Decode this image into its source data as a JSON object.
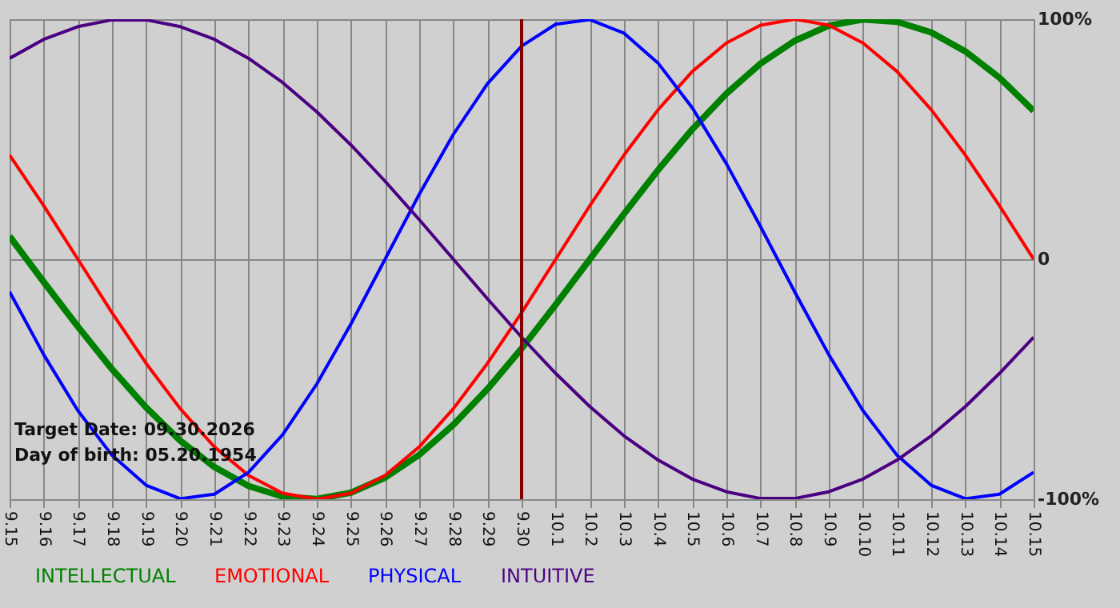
{
  "chart_data": {
    "type": "line",
    "categories": [
      "9.15",
      "9.16",
      "9.17",
      "9.18",
      "9.19",
      "9.20",
      "9.21",
      "9.22",
      "9.23",
      "9.24",
      "9.25",
      "9.26",
      "9.27",
      "9.28",
      "9.29",
      "9.30",
      "10.1",
      "10.2",
      "10.3",
      "10.4",
      "10.5",
      "10.6",
      "10.7",
      "10.8",
      "10.9",
      "10.10",
      "10.11",
      "10.12",
      "10.13",
      "10.14",
      "10.15"
    ],
    "series": [
      {
        "name": "INTELLECTUAL",
        "color": "#008000",
        "values": [
          9.5,
          -9.5,
          -28.1,
          -45.8,
          -61.8,
          -75.6,
          -86.6,
          -94.5,
          -98.9,
          -99.9,
          -97.3,
          -91.0,
          -81.5,
          -69.0,
          -54.1,
          -37.2,
          -18.9,
          0,
          18.9,
          37.2,
          54.1,
          69.0,
          81.5,
          91.0,
          97.3,
          99.9,
          98.9,
          94.5,
          86.6,
          75.6,
          61.8
        ]
      },
      {
        "name": "EMOTIONAL",
        "color": "#ff0000",
        "values": [
          43.4,
          22.3,
          0,
          -22.3,
          -43.4,
          -62.3,
          -78.2,
          -90.1,
          -97.5,
          -100,
          -97.5,
          -90.1,
          -78.2,
          -62.3,
          -43.4,
          -22.3,
          0,
          22.3,
          43.4,
          62.3,
          78.2,
          90.1,
          97.5,
          100,
          97.5,
          90.1,
          78.2,
          62.3,
          43.4,
          22.3,
          0
        ]
      },
      {
        "name": "PHYSICAL",
        "color": "#0000ff",
        "values": [
          -13.6,
          -39.8,
          -63.1,
          -81.7,
          -94.2,
          -99.8,
          -97.9,
          -88.8,
          -73.1,
          -52.0,
          -27.0,
          0,
          27.0,
          52.0,
          73.1,
          88.8,
          97.9,
          99.8,
          94.2,
          81.7,
          63.1,
          39.8,
          13.6,
          -13.6,
          -39.8,
          -63.1,
          -81.7,
          -94.2,
          -99.8,
          -97.9,
          -88.8
        ]
      },
      {
        "name": "INTUITIVE",
        "color": "#4b0082",
        "values": [
          83.7,
          91.6,
          96.9,
          99.7,
          99.7,
          96.9,
          91.6,
          83.7,
          73.6,
          61.4,
          47.6,
          32.5,
          16.5,
          0,
          -16.5,
          -32.5,
          -47.6,
          -61.4,
          -73.6,
          -83.7,
          -91.6,
          -96.9,
          -99.7,
          -99.7,
          -96.9,
          -91.6,
          -83.7,
          -73.6,
          -61.4,
          -47.6,
          -32.5
        ]
      }
    ],
    "ylim": [
      -100,
      100
    ],
    "yticks": [
      {
        "value": -100,
        "label": "-100%"
      },
      0,
      {
        "value": 100,
        "label": "100%"
      }
    ],
    "grid": true,
    "legend": "bottom",
    "ref_lines": [
      {
        "axis": "x",
        "value": "9.30",
        "color": "#800000"
      }
    ],
    "annotations": [
      "Target Date: 09.30.2026",
      "Day of birth: 05.20.1954"
    ]
  }
}
